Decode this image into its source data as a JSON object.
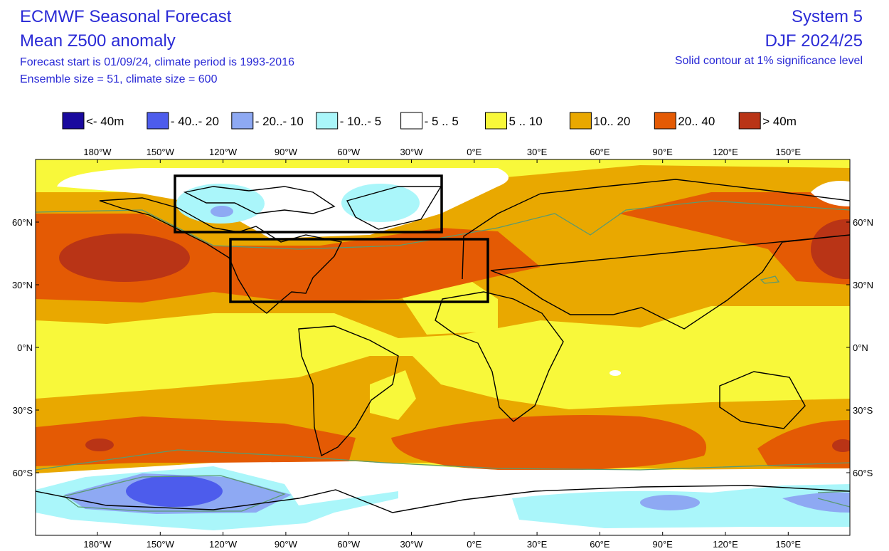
{
  "header": {
    "title_lines": [
      "ECMWF Seasonal Forecast",
      "Mean Z500 anomaly",
      "Forecast start is 01/09/24, climate period is 1993-2016",
      "Ensemble size = 51, climate size = 600"
    ],
    "right_lines": [
      "System 5",
      "DJF 2024/25",
      "Solid contour at 1% significance level"
    ]
  },
  "legend": [
    {
      "label": "<- 40m",
      "color": "#1a0a9e"
    },
    {
      "label": "- 40..- 20",
      "color": "#4d5cec"
    },
    {
      "label": "- 20..- 10",
      "color": "#8ea9f3"
    },
    {
      "label": "- 10..- 5",
      "color": "#aaf6fa"
    },
    {
      "label": "- 5 .. 5",
      "color": "#ffffff"
    },
    {
      "label": "5 .. 10",
      "color": "#f8f83a"
    },
    {
      "label": "10.. 20",
      "color": "#e9a800"
    },
    {
      "label": "20.. 40",
      "color": "#e45a04"
    },
    {
      "label": "> 40m",
      "color": "#b93416"
    }
  ],
  "map": {
    "lon_labels": [
      "180°W",
      "150°W",
      "120°W",
      "90°W",
      "60°W",
      "30°W",
      "0°E",
      "30°E",
      "60°E",
      "90°E",
      "120°E",
      "150°E"
    ],
    "lat_labels": [
      "60°N",
      "30°N",
      "0°N",
      "30°S",
      "60°S"
    ]
  }
}
